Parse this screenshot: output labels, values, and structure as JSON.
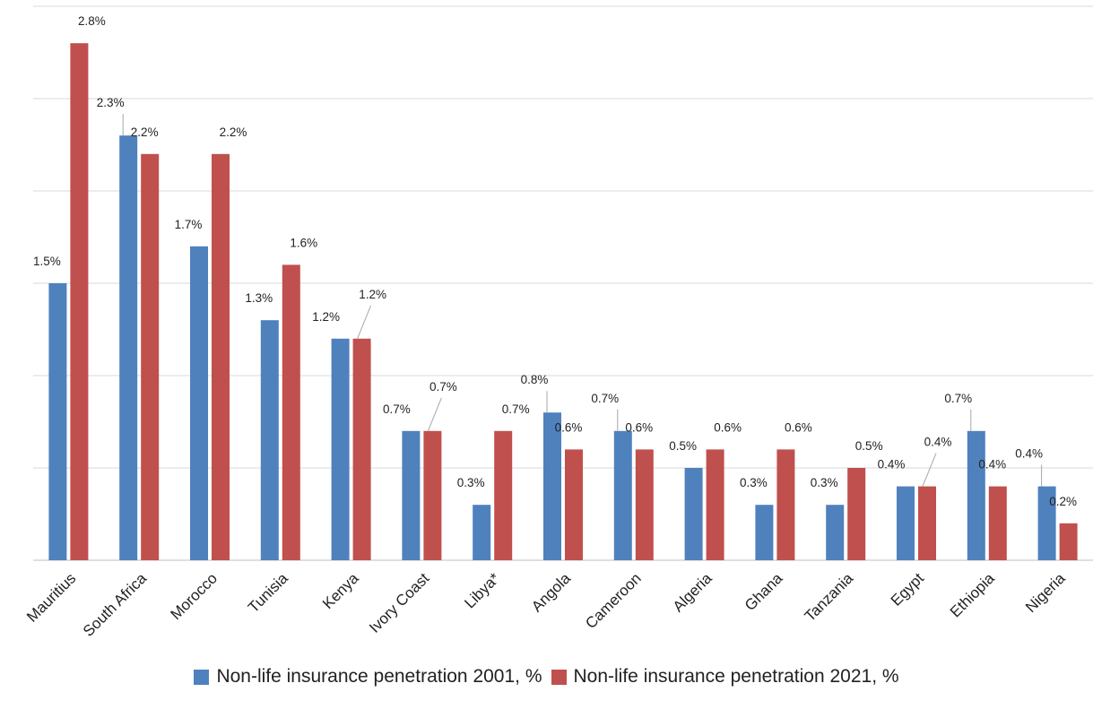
{
  "chart_data": {
    "type": "bar",
    "title": "",
    "xlabel": "",
    "ylabel": "",
    "ylim": [
      0,
      3.0
    ],
    "grid": true,
    "legend_position": "bottom",
    "categories": [
      "Mauritius",
      "South Africa",
      "Morocco",
      "Tunisia",
      "Kenya",
      "Ivory Coast",
      "Libya*",
      "Angola",
      "Cameroon",
      "Algeria",
      "Ghana",
      "Tanzania",
      "Egypt",
      "Ethiopia",
      "Nigeria"
    ],
    "series": [
      {
        "name": "Non-life insurance penetration 2001, %",
        "color": "#4f81bd",
        "values": [
          1.5,
          2.3,
          1.7,
          1.3,
          1.2,
          0.7,
          0.3,
          0.8,
          0.7,
          0.5,
          0.3,
          0.3,
          0.4,
          0.7,
          0.4
        ],
        "labels": [
          "1.5%",
          "2.3%",
          "1.7%",
          "1.3%",
          "1.2%",
          "0.7%",
          "0.3%",
          "0.8%",
          "0.7%",
          "0.5%",
          "0.3%",
          "0.3%",
          "0.4%",
          "0.7%",
          "0.4%"
        ]
      },
      {
        "name": "Non-life insurance penetration 2021, %",
        "color": "#c0504d",
        "values": [
          2.8,
          2.2,
          2.2,
          1.6,
          1.2,
          0.7,
          0.7,
          0.6,
          0.6,
          0.6,
          0.6,
          0.5,
          0.4,
          0.4,
          0.2
        ],
        "labels": [
          "2.8%",
          "2.2%",
          "2.2%",
          "1.6%",
          "1.2%",
          "0.7%",
          "0.7%",
          "0.6%",
          "0.6%",
          "0.6%",
          "0.6%",
          "0.5%",
          "0.4%",
          "0.4%",
          "0.2%"
        ]
      }
    ]
  }
}
